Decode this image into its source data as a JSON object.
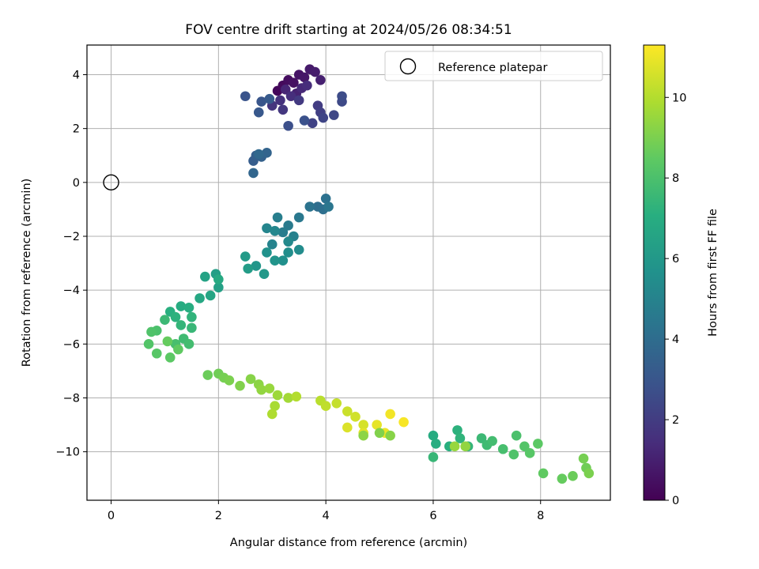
{
  "chart_data": {
    "type": "scatter",
    "title": "FOV centre drift starting at 2024/05/26 08:34:51",
    "xlabel": "Angular distance from reference (arcmin)",
    "ylabel": "Rotation from reference (arcmin)",
    "xlim": [
      -0.45,
      9.3
    ],
    "ylim": [
      -11.8,
      5.1
    ],
    "xticks": [
      0,
      2,
      4,
      6,
      8
    ],
    "xtick_labels": [
      "0",
      "2",
      "4",
      "6",
      "8"
    ],
    "yticks": [
      4,
      2,
      0,
      -2,
      -4,
      -6,
      -8,
      -10
    ],
    "ytick_labels": [
      "4",
      "2",
      "0",
      "−2",
      "−4",
      "−6",
      "−8",
      "−10"
    ],
    "grid": true,
    "legend": {
      "position": "top-right",
      "entries": [
        "Reference platepar"
      ]
    },
    "reference_point": {
      "x": 0,
      "y": 0,
      "marker": "open-circle",
      "label": "Reference platepar"
    },
    "colorbar": {
      "label": "Hours from first FF file",
      "colormap": "viridis",
      "range": [
        0,
        11.3
      ],
      "ticks": [
        0,
        2,
        4,
        6,
        8,
        10
      ],
      "tick_labels": [
        "0",
        "2",
        "4",
        "6",
        "8",
        "10"
      ]
    },
    "points": [
      [
        3.1,
        3.4,
        0.2
      ],
      [
        3.2,
        3.6,
        0.3
      ],
      [
        3.3,
        3.8,
        0.4
      ],
      [
        3.4,
        3.7,
        0.5
      ],
      [
        3.5,
        4.0,
        0.6
      ],
      [
        3.6,
        3.9,
        0.7
      ],
      [
        3.7,
        4.2,
        0.8
      ],
      [
        3.8,
        4.1,
        0.9
      ],
      [
        3.9,
        3.8,
        1.0
      ],
      [
        3.45,
        3.3,
        1.1
      ],
      [
        3.25,
        3.45,
        1.2
      ],
      [
        3.55,
        3.5,
        1.3
      ],
      [
        3.65,
        3.6,
        1.4
      ],
      [
        3.35,
        3.2,
        1.5
      ],
      [
        3.15,
        3.05,
        1.6
      ],
      [
        3.0,
        2.85,
        1.7
      ],
      [
        3.2,
        2.7,
        1.8
      ],
      [
        3.5,
        3.05,
        1.9
      ],
      [
        3.85,
        2.85,
        2.0
      ],
      [
        3.9,
        2.6,
        2.1
      ],
      [
        3.75,
        2.2,
        2.2
      ],
      [
        3.95,
        2.4,
        2.3
      ],
      [
        4.15,
        2.5,
        2.4
      ],
      [
        4.3,
        3.0,
        2.5
      ],
      [
        4.3,
        3.2,
        2.6
      ],
      [
        3.3,
        2.1,
        2.7
      ],
      [
        3.6,
        2.3,
        2.8
      ],
      [
        2.5,
        3.2,
        2.9
      ],
      [
        2.8,
        3.0,
        3.0
      ],
      [
        2.75,
        2.6,
        3.1
      ],
      [
        2.95,
        3.1,
        3.2
      ],
      [
        2.65,
        0.8,
        3.3
      ],
      [
        2.7,
        1.0,
        3.4
      ],
      [
        2.8,
        0.95,
        3.5
      ],
      [
        2.9,
        1.1,
        3.6
      ],
      [
        2.65,
        0.35,
        3.7
      ],
      [
        2.75,
        1.05,
        3.8
      ],
      [
        3.85,
        -0.9,
        4.0
      ],
      [
        3.95,
        -1.0,
        4.1
      ],
      [
        4.0,
        -0.6,
        4.2
      ],
      [
        3.7,
        -0.9,
        4.3
      ],
      [
        4.05,
        -0.9,
        4.4
      ],
      [
        3.5,
        -1.3,
        4.5
      ],
      [
        3.3,
        -1.6,
        4.6
      ],
      [
        3.2,
        -1.85,
        4.7
      ],
      [
        3.1,
        -1.3,
        4.8
      ],
      [
        3.4,
        -2.0,
        4.9
      ],
      [
        3.0,
        -2.3,
        5.0
      ],
      [
        2.9,
        -1.7,
        5.1
      ],
      [
        3.05,
        -1.8,
        5.2
      ],
      [
        3.3,
        -2.2,
        5.3
      ],
      [
        3.5,
        -2.5,
        5.4
      ],
      [
        3.3,
        -2.6,
        5.5
      ],
      [
        3.2,
        -2.9,
        5.6
      ],
      [
        2.9,
        -2.6,
        5.7
      ],
      [
        3.05,
        -2.9,
        5.8
      ],
      [
        2.7,
        -3.1,
        5.9
      ],
      [
        2.85,
        -3.4,
        6.0
      ],
      [
        2.5,
        -2.75,
        6.1
      ],
      [
        2.55,
        -3.2,
        6.2
      ],
      [
        1.95,
        -3.4,
        6.3
      ],
      [
        2.0,
        -3.9,
        6.4
      ],
      [
        1.75,
        -3.5,
        6.5
      ],
      [
        1.85,
        -4.2,
        6.6
      ],
      [
        1.65,
        -4.3,
        6.7
      ],
      [
        2.0,
        -3.6,
        6.8
      ],
      [
        1.3,
        -4.6,
        6.9
      ],
      [
        1.45,
        -4.65,
        7.0
      ],
      [
        1.1,
        -4.8,
        7.1
      ],
      [
        1.2,
        -5.0,
        7.2
      ],
      [
        1.5,
        -5.0,
        7.3
      ],
      [
        1.3,
        -5.3,
        7.4
      ],
      [
        1.5,
        -5.4,
        7.5
      ],
      [
        1.0,
        -5.1,
        7.6
      ],
      [
        1.35,
        -5.8,
        7.7
      ],
      [
        1.45,
        -6.0,
        7.8
      ],
      [
        1.2,
        -6.0,
        7.9
      ],
      [
        0.85,
        -5.5,
        8.0
      ],
      [
        0.75,
        -5.55,
        8.1
      ],
      [
        0.7,
        -6.0,
        8.2
      ],
      [
        0.85,
        -6.35,
        8.3
      ],
      [
        1.1,
        -6.5,
        8.4
      ],
      [
        1.25,
        -6.2,
        8.5
      ],
      [
        1.05,
        -5.9,
        8.6
      ],
      [
        1.8,
        -7.15,
        8.7
      ],
      [
        2.0,
        -7.1,
        8.8
      ],
      [
        2.1,
        -7.25,
        8.9
      ],
      [
        2.2,
        -7.35,
        9.0
      ],
      [
        2.4,
        -7.55,
        9.1
      ],
      [
        2.6,
        -7.3,
        9.2
      ],
      [
        2.75,
        -7.5,
        9.3
      ],
      [
        2.8,
        -7.7,
        9.4
      ],
      [
        2.95,
        -7.65,
        9.5
      ],
      [
        3.1,
        -7.9,
        9.6
      ],
      [
        3.3,
        -8.0,
        9.7
      ],
      [
        3.05,
        -8.3,
        9.8
      ],
      [
        3.0,
        -8.6,
        9.9
      ],
      [
        3.45,
        -7.95,
        10.0
      ],
      [
        3.9,
        -8.1,
        10.1
      ],
      [
        4.0,
        -8.3,
        10.2
      ],
      [
        4.2,
        -8.2,
        10.3
      ],
      [
        4.4,
        -8.5,
        10.4
      ],
      [
        4.55,
        -8.7,
        10.5
      ],
      [
        4.7,
        -9.0,
        10.6
      ],
      [
        4.4,
        -9.1,
        10.7
      ],
      [
        4.7,
        -9.3,
        10.8
      ],
      [
        4.95,
        -9.0,
        10.9
      ],
      [
        5.1,
        -9.3,
        11.0
      ],
      [
        5.2,
        -8.6,
        11.1
      ],
      [
        5.45,
        -8.9,
        11.2
      ],
      [
        6.0,
        -9.4,
        6.9
      ],
      [
        6.05,
        -9.7,
        7.0
      ],
      [
        6.3,
        -9.8,
        7.1
      ],
      [
        6.45,
        -9.2,
        7.2
      ],
      [
        6.5,
        -9.5,
        7.3
      ],
      [
        6.65,
        -9.8,
        7.4
      ],
      [
        6.0,
        -10.2,
        7.5
      ],
      [
        6.9,
        -9.5,
        7.6
      ],
      [
        7.0,
        -9.75,
        7.7
      ],
      [
        7.1,
        -9.6,
        7.8
      ],
      [
        7.3,
        -9.9,
        7.9
      ],
      [
        7.55,
        -9.4,
        8.0
      ],
      [
        7.5,
        -10.1,
        8.1
      ],
      [
        7.7,
        -9.8,
        8.2
      ],
      [
        7.8,
        -10.05,
        8.3
      ],
      [
        7.95,
        -9.7,
        8.4
      ],
      [
        8.05,
        -10.8,
        8.5
      ],
      [
        8.4,
        -11.0,
        8.6
      ],
      [
        8.6,
        -10.9,
        8.7
      ],
      [
        8.85,
        -10.6,
        8.8
      ],
      [
        8.8,
        -10.25,
        8.9
      ],
      [
        8.9,
        -10.8,
        9.0
      ],
      [
        5.0,
        -9.3,
        9.1
      ],
      [
        5.2,
        -9.4,
        9.2
      ],
      [
        4.7,
        -9.4,
        9.3
      ],
      [
        6.6,
        -9.8,
        9.4
      ],
      [
        6.4,
        -9.8,
        9.5
      ]
    ]
  }
}
